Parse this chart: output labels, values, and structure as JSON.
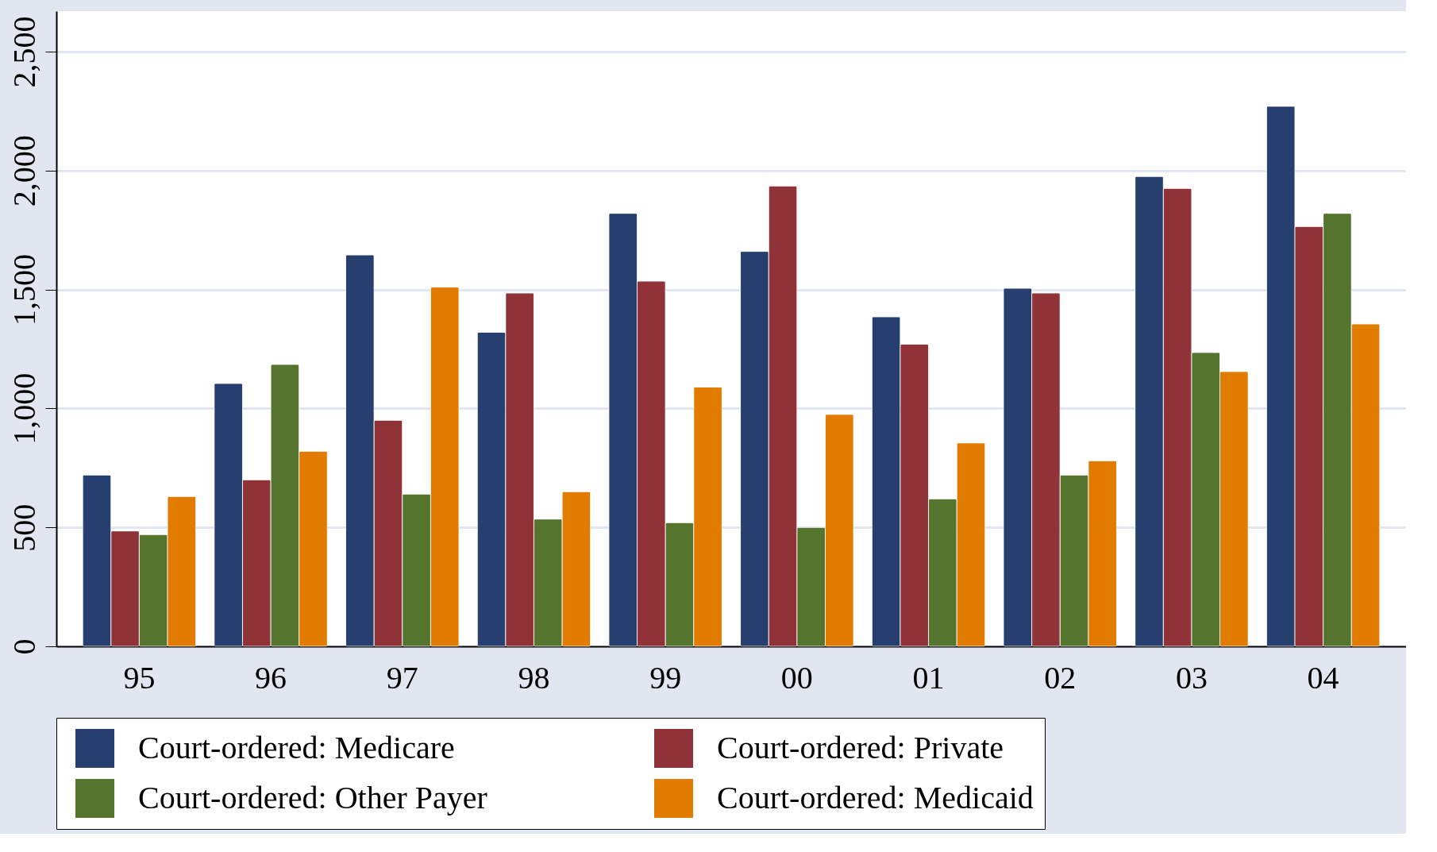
{
  "chart_data": {
    "type": "bar",
    "categories": [
      "95",
      "96",
      "97",
      "98",
      "99",
      "00",
      "01",
      "02",
      "03",
      "04"
    ],
    "series": [
      {
        "name": "Court-ordered: Medicare",
        "color": "#263f6e",
        "values": [
          720,
          1105,
          1645,
          1320,
          1820,
          1660,
          1385,
          1505,
          1975,
          2270
        ]
      },
      {
        "name": "Court-ordered: Private",
        "color": "#903339",
        "values": [
          485,
          700,
          950,
          1485,
          1535,
          1935,
          1270,
          1485,
          1925,
          1765
        ]
      },
      {
        "name": "Court-ordered: Other Payer",
        "color": "#55742e",
        "values": [
          470,
          1185,
          640,
          535,
          520,
          500,
          620,
          720,
          1235,
          1820
        ]
      },
      {
        "name": "Court-ordered: Medicaid",
        "color": "#e27c00",
        "values": [
          630,
          820,
          1510,
          650,
          1090,
          975,
          855,
          780,
          1155,
          1355
        ]
      }
    ],
    "ylim": [
      0,
      2670
    ],
    "yticks": [
      0,
      {
        "value": 500,
        "label": "500"
      },
      {
        "value": 1000,
        "label": "1,000"
      },
      {
        "value": 1500,
        "label": "1,500"
      },
      {
        "value": 2000,
        "label": "2,000"
      },
      {
        "value": 2500,
        "label": "2,500"
      }
    ],
    "grid": "y",
    "legend": "bottom"
  }
}
